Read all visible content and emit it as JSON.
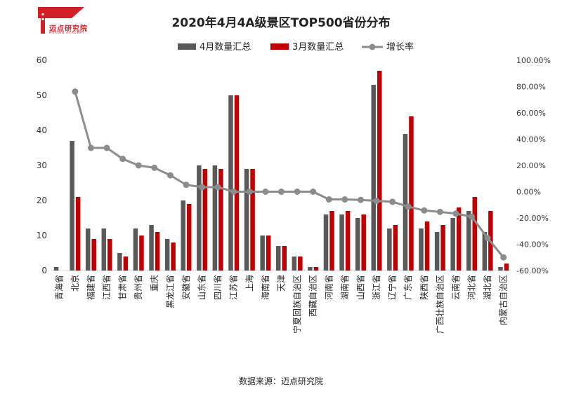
{
  "title": "2020年4月4A级景区TOP500省份分布",
  "source": "数据来源：迈点研究院",
  "logo": {
    "name": "迈点研究院",
    "sub": "MEADIN ACADEMY",
    "color": "#d21f26"
  },
  "colors": {
    "series_apr": "#595959",
    "series_mar": "#c00000",
    "growth": "#8c8c8c"
  },
  "chart_data": {
    "type": "bar",
    "title": "2020年4月4A级景区TOP500省份分布",
    "categories": [
      "青海省",
      "北京",
      "福建省",
      "江西省",
      "甘肃省",
      "贵州省",
      "重庆",
      "黑龙江省",
      "安徽省",
      "山东省",
      "四川省",
      "江苏省",
      "上海",
      "海南省",
      "天津",
      "宁夏回族自治区",
      "西藏自治区",
      "河南省",
      "湖南省",
      "山西省",
      "浙江省",
      "辽宁省",
      "广东省",
      "陕西省",
      "广西壮族自治区",
      "云南省",
      "河北省",
      "湖北省",
      "内蒙古自治区"
    ],
    "series": [
      {
        "name": "4月数量汇总",
        "type": "bar",
        "axis": "left",
        "values": [
          1,
          37,
          12,
          12,
          5,
          12,
          13,
          9,
          20,
          30,
          30,
          50,
          29,
          10,
          7,
          4,
          1,
          16,
          16,
          15,
          53,
          12,
          39,
          12,
          11,
          15,
          17,
          11,
          1
        ]
      },
      {
        "name": "3月数量汇总",
        "type": "bar",
        "axis": "left",
        "values": [
          null,
          21,
          9,
          9,
          4,
          10,
          11,
          8,
          19,
          29,
          29,
          50,
          29,
          10,
          7,
          4,
          1,
          17,
          17,
          16,
          57,
          13,
          44,
          14,
          13,
          18,
          21,
          17,
          2
        ]
      },
      {
        "name": "增长率",
        "type": "line",
        "axis": "right",
        "values": [
          null,
          76.19,
          33.33,
          33.33,
          25.0,
          20.0,
          18.18,
          12.5,
          5.26,
          3.45,
          3.45,
          0.0,
          0.0,
          0.0,
          0.0,
          0.0,
          0.0,
          -5.88,
          -5.88,
          -6.25,
          -7.02,
          -7.69,
          -11.36,
          -14.29,
          -15.38,
          -16.67,
          -19.05,
          -35.29,
          -50.0
        ]
      }
    ],
    "ylim_left": [
      0,
      60
    ],
    "yticks_left": [
      0,
      10,
      20,
      30,
      40,
      50,
      60
    ],
    "ylim_right": [
      -60,
      100
    ],
    "yticks_right": [
      "-60.00%",
      "-40.00%",
      "-20.00%",
      "0.00%",
      "20.00%",
      "40.00%",
      "60.00%",
      "80.00%",
      "100.00%"
    ],
    "legend": {
      "position": "top-center",
      "items": [
        "4月数量汇总",
        "3月数量汇总",
        "增长率"
      ]
    },
    "grid": false
  }
}
